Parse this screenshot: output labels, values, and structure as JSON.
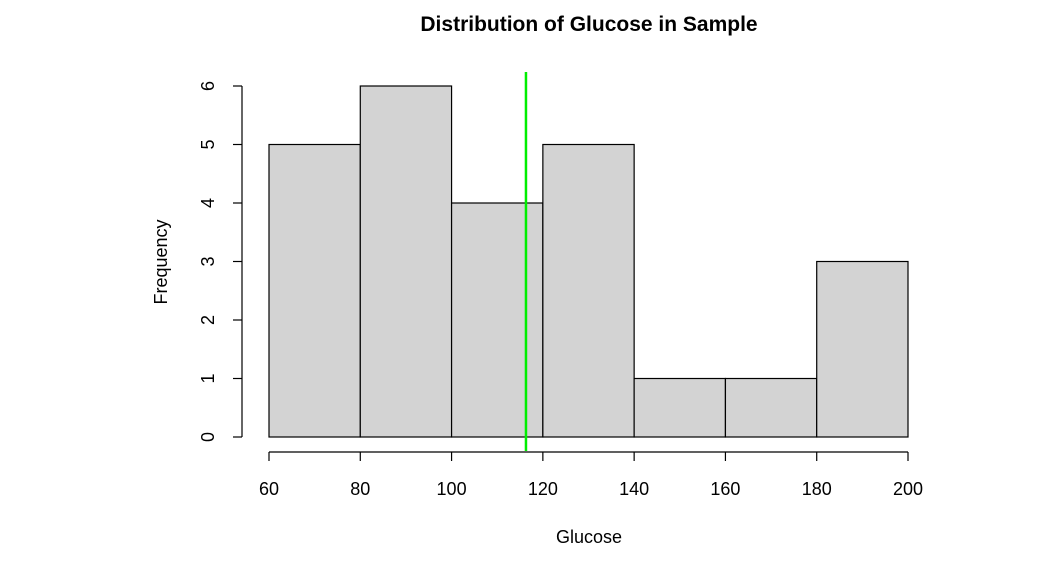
{
  "chart_data": {
    "type": "bar",
    "title": "Distribution of Glucose in Sample",
    "xlabel": "Glucose",
    "ylabel": "Frequency",
    "bins": [
      [
        60,
        80
      ],
      [
        80,
        100
      ],
      [
        100,
        120
      ],
      [
        120,
        140
      ],
      [
        140,
        160
      ],
      [
        160,
        180
      ],
      [
        180,
        200
      ]
    ],
    "values": [
      5,
      6,
      4,
      5,
      1,
      1,
      3
    ],
    "xlim": [
      60,
      200
    ],
    "ylim": [
      0,
      6
    ],
    "x_ticks": [
      60,
      80,
      100,
      120,
      140,
      160,
      180,
      200
    ],
    "y_ticks": [
      0,
      1,
      2,
      3,
      4,
      5,
      6
    ],
    "bar_color": "#d3d3d3",
    "grid": false,
    "reference_line": {
      "x": 116.3,
      "color": "#00ee00"
    }
  }
}
